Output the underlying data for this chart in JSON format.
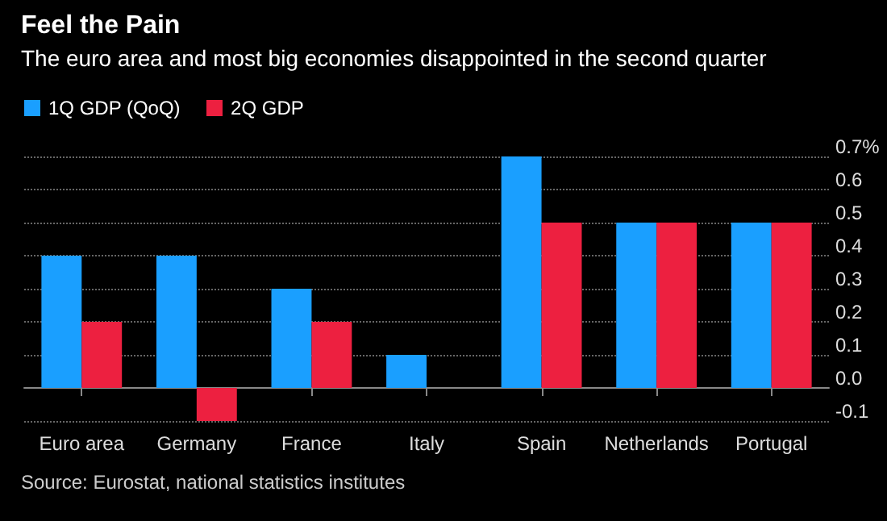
{
  "chart_data": {
    "type": "bar",
    "title": "Feel the Pain",
    "subtitle": "The euro area and most big economies disappointed in the second quarter",
    "categories": [
      "Euro area",
      "Germany",
      "France",
      "Italy",
      "Spain",
      "Netherlands",
      "Portugal"
    ],
    "series": [
      {
        "name": "1Q GDP (QoQ)",
        "color": "#1a9fff",
        "values": [
          0.4,
          0.4,
          0.3,
          0.1,
          0.7,
          0.5,
          0.5
        ]
      },
      {
        "name": "2Q GDP",
        "color": "#ed2040",
        "values": [
          0.2,
          -0.1,
          0.2,
          0.0,
          0.5,
          0.5,
          0.5
        ]
      }
    ],
    "ylim": [
      -0.1,
      0.7
    ],
    "yticks": [
      -0.1,
      "0.0",
      0.1,
      0.2,
      0.3,
      0.4,
      0.5,
      0.6,
      {
        "value": 0.7,
        "label": "0.7%"
      }
    ],
    "grid": "y",
    "legend": "top left",
    "annotations": [
      "Source: Eurostat, national statistics institutes"
    ]
  }
}
